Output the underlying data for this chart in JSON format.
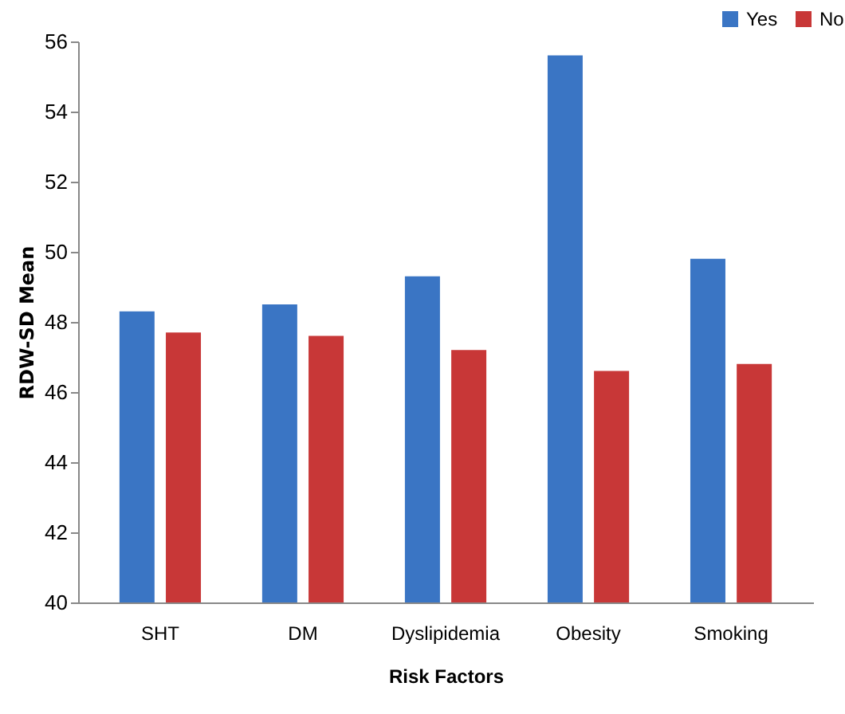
{
  "chart_data": {
    "type": "bar",
    "xlabel": "Risk Factors",
    "ylabel": "RDW-SD Mean",
    "categories": [
      "SHT",
      "DM",
      "Dyslipidemia",
      "Obesity",
      "Smoking"
    ],
    "series": [
      {
        "name": "Yes",
        "color": "#3a75c4",
        "values": [
          48.3,
          48.5,
          49.3,
          55.6,
          49.8
        ]
      },
      {
        "name": "No",
        "color": "#c83737",
        "values": [
          47.7,
          47.6,
          47.2,
          46.6,
          46.8
        ]
      }
    ],
    "ylim": [
      40,
      56
    ],
    "yticks": [
      40,
      42,
      44,
      46,
      48,
      50,
      52,
      54,
      56
    ],
    "grid": false,
    "legend": "top right"
  }
}
